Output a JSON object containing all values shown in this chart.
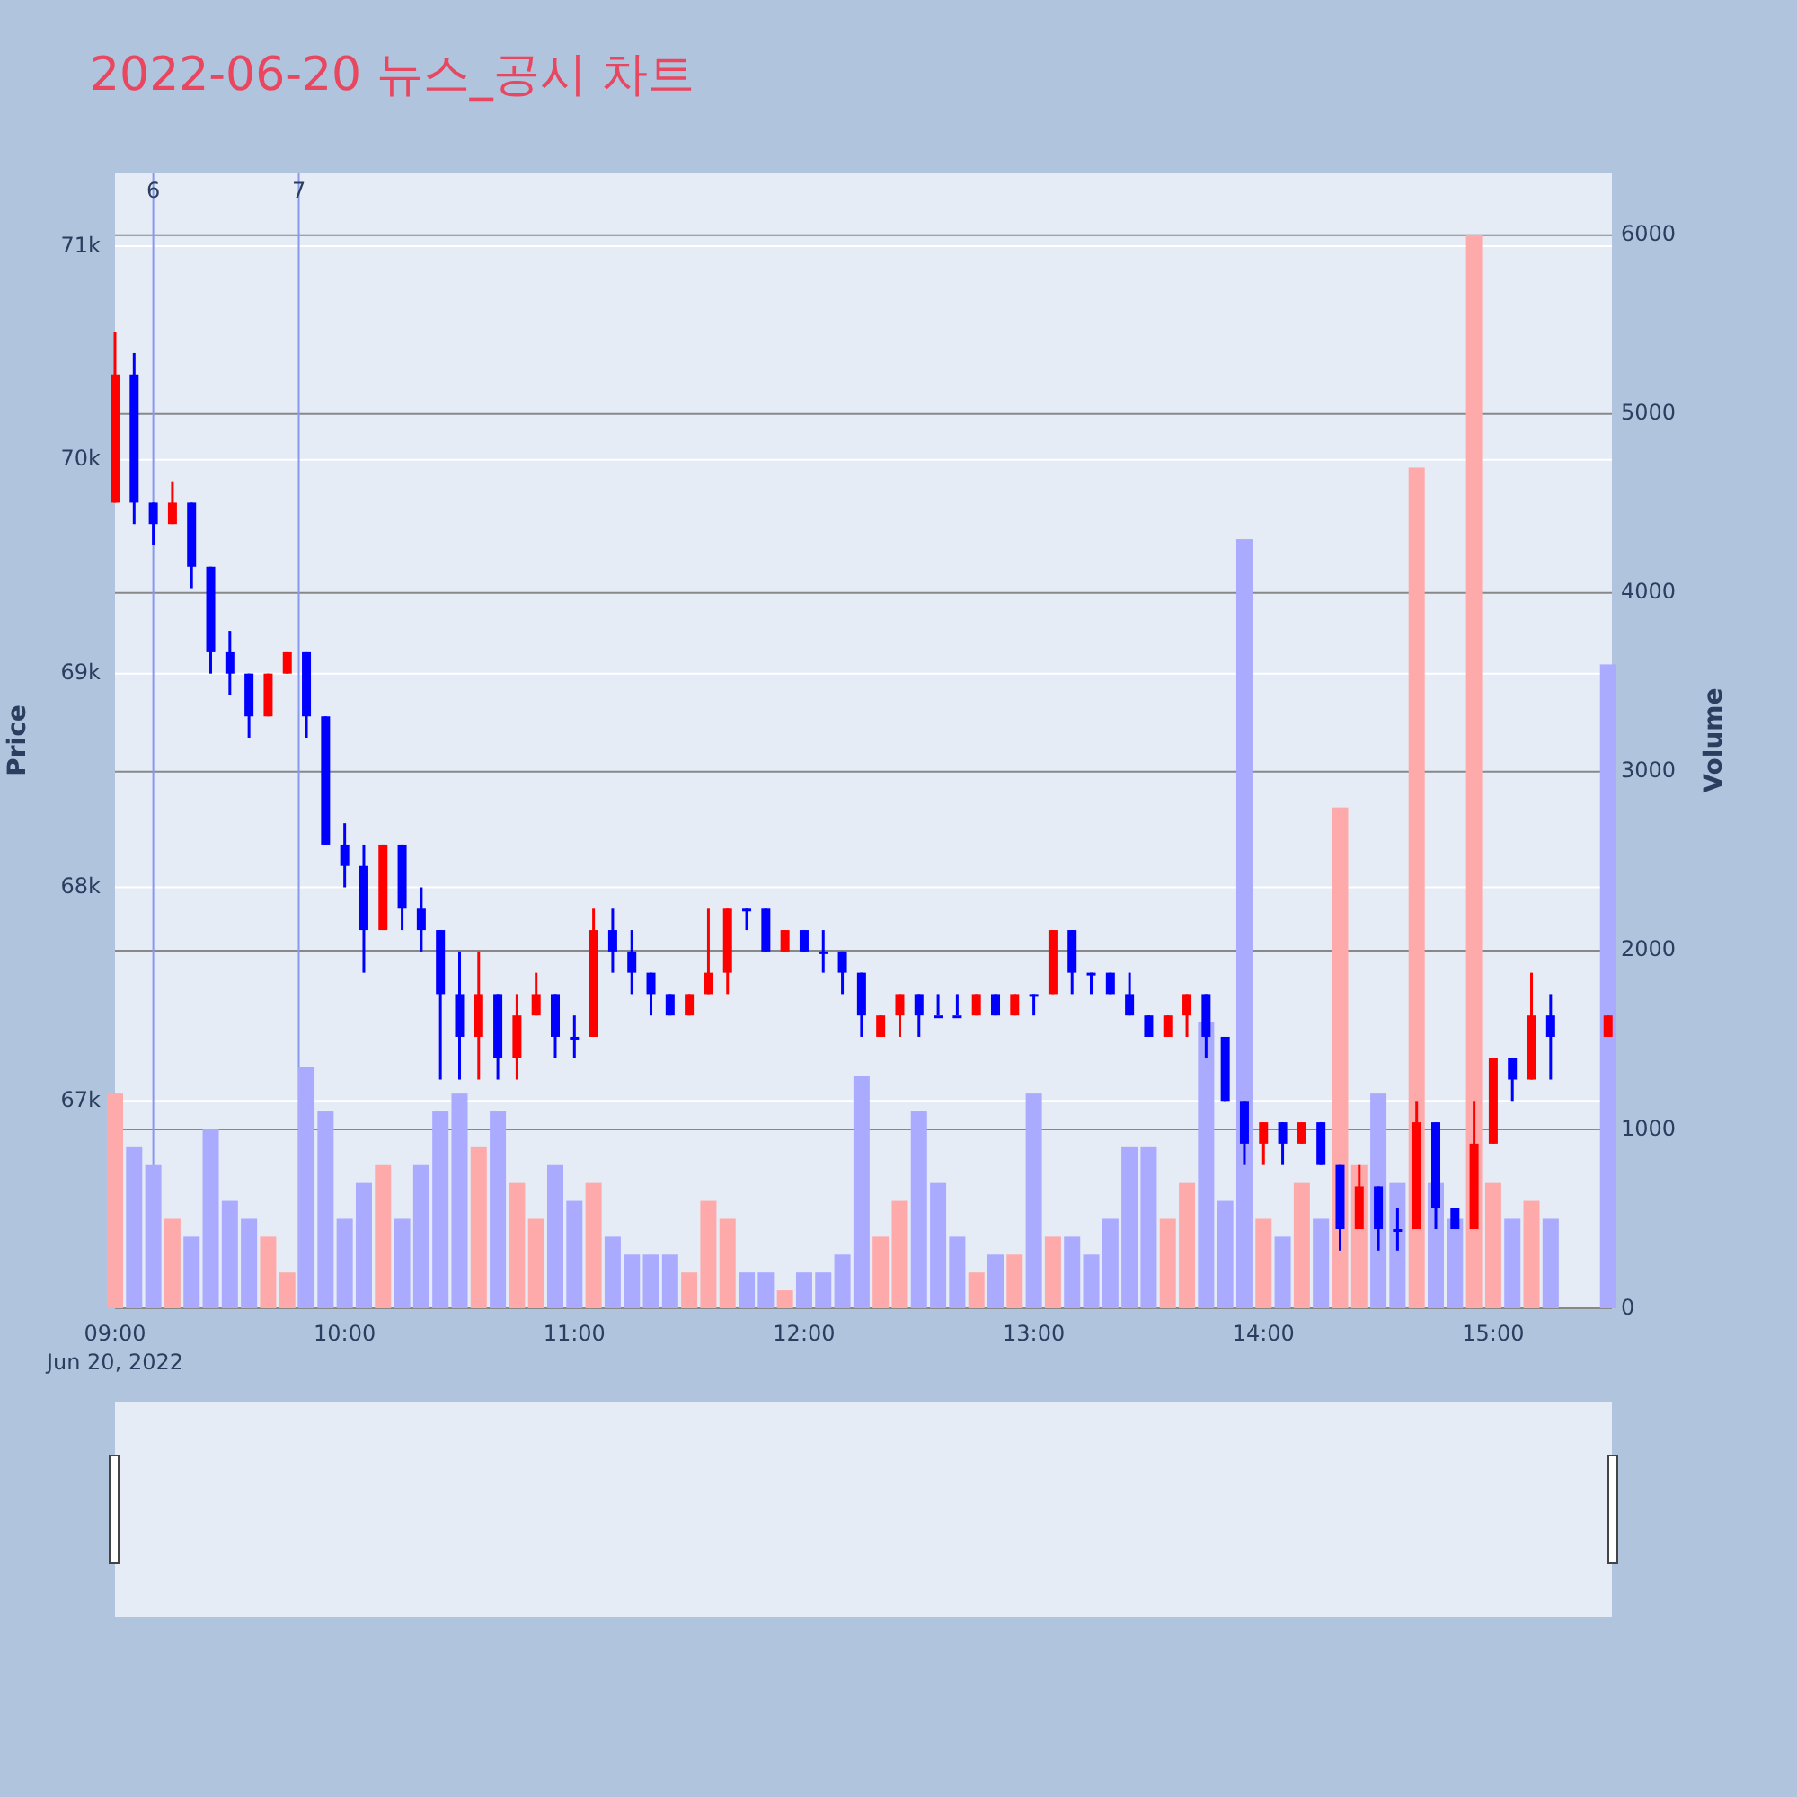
{
  "chart_data": {
    "type": "candlestick",
    "title": "2022-06-20 뉴스_공시 차트",
    "ylabel": "Price",
    "y2label": "Volume",
    "xlim": [
      "2022-06-20T09:00",
      "2022-06-20T15:31"
    ],
    "xticks": [
      {
        "value": "2022-06-20T09:00",
        "label": "09:00\nJun 20, 2022"
      },
      {
        "value": "2022-06-20T10:00",
        "label": "10:00"
      },
      {
        "value": "2022-06-20T11:00",
        "label": "11:00"
      },
      {
        "value": "2022-06-20T12:00",
        "label": "12:00"
      },
      {
        "value": "2022-06-20T13:00",
        "label": "13:00"
      },
      {
        "value": "2022-06-20T14:00",
        "label": "14:00"
      },
      {
        "value": "2022-06-20T15:00",
        "label": "15:00"
      }
    ],
    "ylim": [
      66030,
      71345
    ],
    "yticks": [
      {
        "value": 67000,
        "label": "67k"
      },
      {
        "value": 68000,
        "label": "68k"
      },
      {
        "value": 69000,
        "label": "69k"
      },
      {
        "value": 70000,
        "label": "70k"
      },
      {
        "value": 71000,
        "label": "71k"
      }
    ],
    "y2lim": [
      0,
      6350
    ],
    "y2ticks": [
      0,
      1000,
      2000,
      3000,
      4000,
      5000,
      6000
    ],
    "grid": "y",
    "ref_lines": [
      {
        "axis": "x",
        "value": "2022-06-20T09:10",
        "label": "6",
        "color": "#8899ee"
      },
      {
        "axis": "x",
        "value": "2022-06-20T09:48",
        "label": "7",
        "color": "#8899ee"
      }
    ],
    "x": [
      "2022-06-20T09:00",
      "2022-06-20T09:05",
      "2022-06-20T09:10",
      "2022-06-20T09:15",
      "2022-06-20T09:20",
      "2022-06-20T09:25",
      "2022-06-20T09:30",
      "2022-06-20T09:35",
      "2022-06-20T09:40",
      "2022-06-20T09:45",
      "2022-06-20T09:50",
      "2022-06-20T09:55",
      "2022-06-20T10:00",
      "2022-06-20T10:05",
      "2022-06-20T10:10",
      "2022-06-20T10:15",
      "2022-06-20T10:20",
      "2022-06-20T10:25",
      "2022-06-20T10:30",
      "2022-06-20T10:35",
      "2022-06-20T10:40",
      "2022-06-20T10:45",
      "2022-06-20T10:50",
      "2022-06-20T10:55",
      "2022-06-20T11:00",
      "2022-06-20T11:05",
      "2022-06-20T11:10",
      "2022-06-20T11:15",
      "2022-06-20T11:20",
      "2022-06-20T11:25",
      "2022-06-20T11:30",
      "2022-06-20T11:35",
      "2022-06-20T11:40",
      "2022-06-20T11:45",
      "2022-06-20T11:50",
      "2022-06-20T11:55",
      "2022-06-20T12:00",
      "2022-06-20T12:05",
      "2022-06-20T12:10",
      "2022-06-20T12:15",
      "2022-06-20T12:20",
      "2022-06-20T12:25",
      "2022-06-20T12:30",
      "2022-06-20T12:35",
      "2022-06-20T12:40",
      "2022-06-20T12:45",
      "2022-06-20T12:50",
      "2022-06-20T12:55",
      "2022-06-20T13:00",
      "2022-06-20T13:05",
      "2022-06-20T13:10",
      "2022-06-20T13:15",
      "2022-06-20T13:20",
      "2022-06-20T13:25",
      "2022-06-20T13:30",
      "2022-06-20T13:35",
      "2022-06-20T13:40",
      "2022-06-20T13:45",
      "2022-06-20T13:50",
      "2022-06-20T13:55",
      "2022-06-20T14:00",
      "2022-06-20T14:05",
      "2022-06-20T14:10",
      "2022-06-20T14:15",
      "2022-06-20T14:20",
      "2022-06-20T14:25",
      "2022-06-20T14:30",
      "2022-06-20T14:35",
      "2022-06-20T14:40",
      "2022-06-20T14:45",
      "2022-06-20T14:50",
      "2022-06-20T14:55",
      "2022-06-20T15:00",
      "2022-06-20T15:05",
      "2022-06-20T15:10",
      "2022-06-20T15:15",
      "2022-06-20T15:30"
    ],
    "series": [
      {
        "type": "bar",
        "axis": "y2",
        "values": [
          1200,
          900,
          800,
          500,
          400,
          1000,
          600,
          500,
          400,
          200,
          1350,
          1100,
          500,
          700,
          800,
          500,
          800,
          1100,
          1200,
          900,
          1100,
          700,
          500,
          800,
          600,
          700,
          400,
          300,
          300,
          300,
          200,
          600,
          500,
          200,
          200,
          100,
          200,
          200,
          300,
          1300,
          400,
          600,
          1100,
          700,
          400,
          200,
          300,
          300,
          1200,
          400,
          400,
          300,
          500,
          900,
          900,
          500,
          700,
          1600,
          600,
          4300,
          500,
          400,
          700,
          500,
          2800,
          800,
          1200,
          700,
          4700,
          700,
          500,
          6000,
          700,
          500,
          600,
          500,
          3600
        ],
        "colors": [
          "#ffaaaa",
          "#aaaaff",
          "#aaaaff",
          "#ffaaaa",
          "#aaaaff",
          "#aaaaff",
          "#aaaaff",
          "#aaaaff",
          "#ffaaaa",
          "#ffaaaa",
          "#aaaaff",
          "#aaaaff",
          "#aaaaff",
          "#aaaaff",
          "#ffaaaa",
          "#aaaaff",
          "#aaaaff",
          "#aaaaff",
          "#aaaaff",
          "#ffaaaa",
          "#aaaaff",
          "#ffaaaa",
          "#ffaaaa",
          "#aaaaff",
          "#aaaaff",
          "#ffaaaa",
          "#aaaaff",
          "#aaaaff",
          "#aaaaff",
          "#aaaaff",
          "#ffaaaa",
          "#ffaaaa",
          "#ffaaaa",
          "#aaaaff",
          "#aaaaff",
          "#ffaaaa",
          "#aaaaff",
          "#aaaaff",
          "#aaaaff",
          "#aaaaff",
          "#ffaaaa",
          "#ffaaaa",
          "#aaaaff",
          "#aaaaff",
          "#aaaaff",
          "#ffaaaa",
          "#aaaaff",
          "#ffaaaa",
          "#aaaaff",
          "#ffaaaa",
          "#aaaaff",
          "#aaaaff",
          "#aaaaff",
          "#aaaaff",
          "#aaaaff",
          "#ffaaaa",
          "#ffaaaa",
          "#aaaaff",
          "#aaaaff",
          "#aaaaff",
          "#ffaaaa",
          "#aaaaff",
          "#ffaaaa",
          "#aaaaff",
          "#ffaaaa",
          "#ffaaaa",
          "#aaaaff",
          "#aaaaff",
          "#ffaaaa",
          "#aaaaff",
          "#aaaaff",
          "#ffaaaa",
          "#ffaaaa",
          "#aaaaff",
          "#ffaaaa",
          "#aaaaff",
          "#aaaaff"
        ]
      },
      {
        "ohlc": [
          [
            69800,
            70600,
            69800,
            70400
          ],
          [
            70400,
            70500,
            69700,
            69800
          ],
          [
            69800,
            69800,
            69600,
            69700
          ],
          [
            69700,
            69900,
            69700,
            69800
          ],
          [
            69800,
            69800,
            69400,
            69500
          ],
          [
            69500,
            69500,
            69000,
            69100
          ],
          [
            69100,
            69200,
            68900,
            69000
          ],
          [
            69000,
            69000,
            68700,
            68800
          ],
          [
            68800,
            69000,
            68800,
            69000
          ],
          [
            69000,
            69100,
            69000,
            69100
          ],
          [
            69100,
            69100,
            68700,
            68800
          ],
          [
            68800,
            68800,
            68200,
            68200
          ],
          [
            68200,
            68300,
            68000,
            68100
          ],
          [
            68100,
            68200,
            67600,
            67800
          ],
          [
            67800,
            68200,
            67800,
            68200
          ],
          [
            68200,
            68200,
            67800,
            67900
          ],
          [
            67900,
            68000,
            67700,
            67800
          ],
          [
            67800,
            67800,
            67100,
            67500
          ],
          [
            67500,
            67700,
            67100,
            67300
          ],
          [
            67300,
            67700,
            67100,
            67500
          ],
          [
            67500,
            67500,
            67100,
            67200
          ],
          [
            67200,
            67500,
            67100,
            67400
          ],
          [
            67400,
            67600,
            67400,
            67500
          ],
          [
            67500,
            67500,
            67200,
            67300
          ],
          [
            67300,
            67400,
            67200,
            67300
          ],
          [
            67300,
            67900,
            67300,
            67800
          ],
          [
            67800,
            67900,
            67600,
            67700
          ],
          [
            67700,
            67800,
            67500,
            67600
          ],
          [
            67600,
            67600,
            67400,
            67500
          ],
          [
            67500,
            67500,
            67400,
            67400
          ],
          [
            67400,
            67500,
            67400,
            67500
          ],
          [
            67500,
            67900,
            67500,
            67600
          ],
          [
            67600,
            67900,
            67500,
            67900
          ],
          [
            67900,
            67900,
            67800,
            67900
          ],
          [
            67900,
            67900,
            67700,
            67700
          ],
          [
            67700,
            67800,
            67700,
            67800
          ],
          [
            67800,
            67800,
            67700,
            67700
          ],
          [
            67700,
            67800,
            67600,
            67700
          ],
          [
            67700,
            67700,
            67500,
            67600
          ],
          [
            67600,
            67600,
            67300,
            67400
          ],
          [
            67300,
            67400,
            67300,
            67400
          ],
          [
            67400,
            67500,
            67300,
            67500
          ],
          [
            67500,
            67500,
            67300,
            67400
          ],
          [
            67400,
            67500,
            67400,
            67400
          ],
          [
            67400,
            67500,
            67400,
            67400
          ],
          [
            67400,
            67500,
            67400,
            67500
          ],
          [
            67500,
            67500,
            67400,
            67400
          ],
          [
            67400,
            67500,
            67400,
            67500
          ],
          [
            67500,
            67500,
            67400,
            67500
          ],
          [
            67500,
            67800,
            67500,
            67800
          ],
          [
            67800,
            67800,
            67500,
            67600
          ],
          [
            67600,
            67600,
            67500,
            67600
          ],
          [
            67600,
            67600,
            67500,
            67500
          ],
          [
            67500,
            67600,
            67400,
            67400
          ],
          [
            67400,
            67400,
            67300,
            67300
          ],
          [
            67300,
            67400,
            67300,
            67400
          ],
          [
            67400,
            67500,
            67300,
            67500
          ],
          [
            67500,
            67500,
            67200,
            67300
          ],
          [
            67300,
            67300,
            67000,
            67000
          ],
          [
            67000,
            67000,
            66700,
            66800
          ],
          [
            66800,
            66900,
            66700,
            66900
          ],
          [
            66900,
            66900,
            66700,
            66800
          ],
          [
            66800,
            66900,
            66800,
            66900
          ],
          [
            66900,
            66900,
            66700,
            66700
          ],
          [
            66700,
            66700,
            66300,
            66400
          ],
          [
            66400,
            66700,
            66400,
            66600
          ],
          [
            66600,
            66600,
            66300,
            66400
          ],
          [
            66400,
            66500,
            66300,
            66400
          ],
          [
            66400,
            67000,
            66400,
            66900
          ],
          [
            66900,
            66900,
            66400,
            66500
          ],
          [
            66500,
            66500,
            66400,
            66400
          ],
          [
            66400,
            67000,
            66400,
            66800
          ],
          [
            66800,
            67200,
            66800,
            67200
          ],
          [
            67200,
            67200,
            67000,
            67100
          ],
          [
            67100,
            67600,
            67100,
            67400
          ],
          [
            67400,
            67500,
            67100,
            67300
          ],
          [
            67300,
            67400,
            67300,
            67400
          ]
        ],
        "colors": [
          "#ff0000",
          "#0000ff",
          "#0000ff",
          "#ff0000",
          "#0000ff",
          "#0000ff",
          "#0000ff",
          "#0000ff",
          "#ff0000",
          "#ff0000",
          "#0000ff",
          "#0000ff",
          "#0000ff",
          "#0000ff",
          "#ff0000",
          "#0000ff",
          "#0000ff",
          "#0000ff",
          "#0000ff",
          "#ff0000",
          "#0000ff",
          "#ff0000",
          "#ff0000",
          "#0000ff",
          "#0000ff",
          "#ff0000",
          "#0000ff",
          "#0000ff",
          "#0000ff",
          "#0000ff",
          "#ff0000",
          "#ff0000",
          "#ff0000",
          "#0000ff",
          "#0000ff",
          "#ff0000",
          "#0000ff",
          "#0000ff",
          "#0000ff",
          "#0000ff",
          "#ff0000",
          "#ff0000",
          "#0000ff",
          "#0000ff",
          "#0000ff",
          "#ff0000",
          "#0000ff",
          "#ff0000",
          "#0000ff",
          "#ff0000",
          "#0000ff",
          "#0000ff",
          "#0000ff",
          "#0000ff",
          "#0000ff",
          "#ff0000",
          "#ff0000",
          "#0000ff",
          "#0000ff",
          "#0000ff",
          "#ff0000",
          "#0000ff",
          "#ff0000",
          "#0000ff",
          "#0000ff",
          "#ff0000",
          "#0000ff",
          "#0000ff",
          "#ff0000",
          "#0000ff",
          "#0000ff",
          "#ff0000",
          "#ff0000",
          "#0000ff",
          "#ff0000",
          "#0000ff",
          "#ff0000"
        ]
      }
    ]
  }
}
